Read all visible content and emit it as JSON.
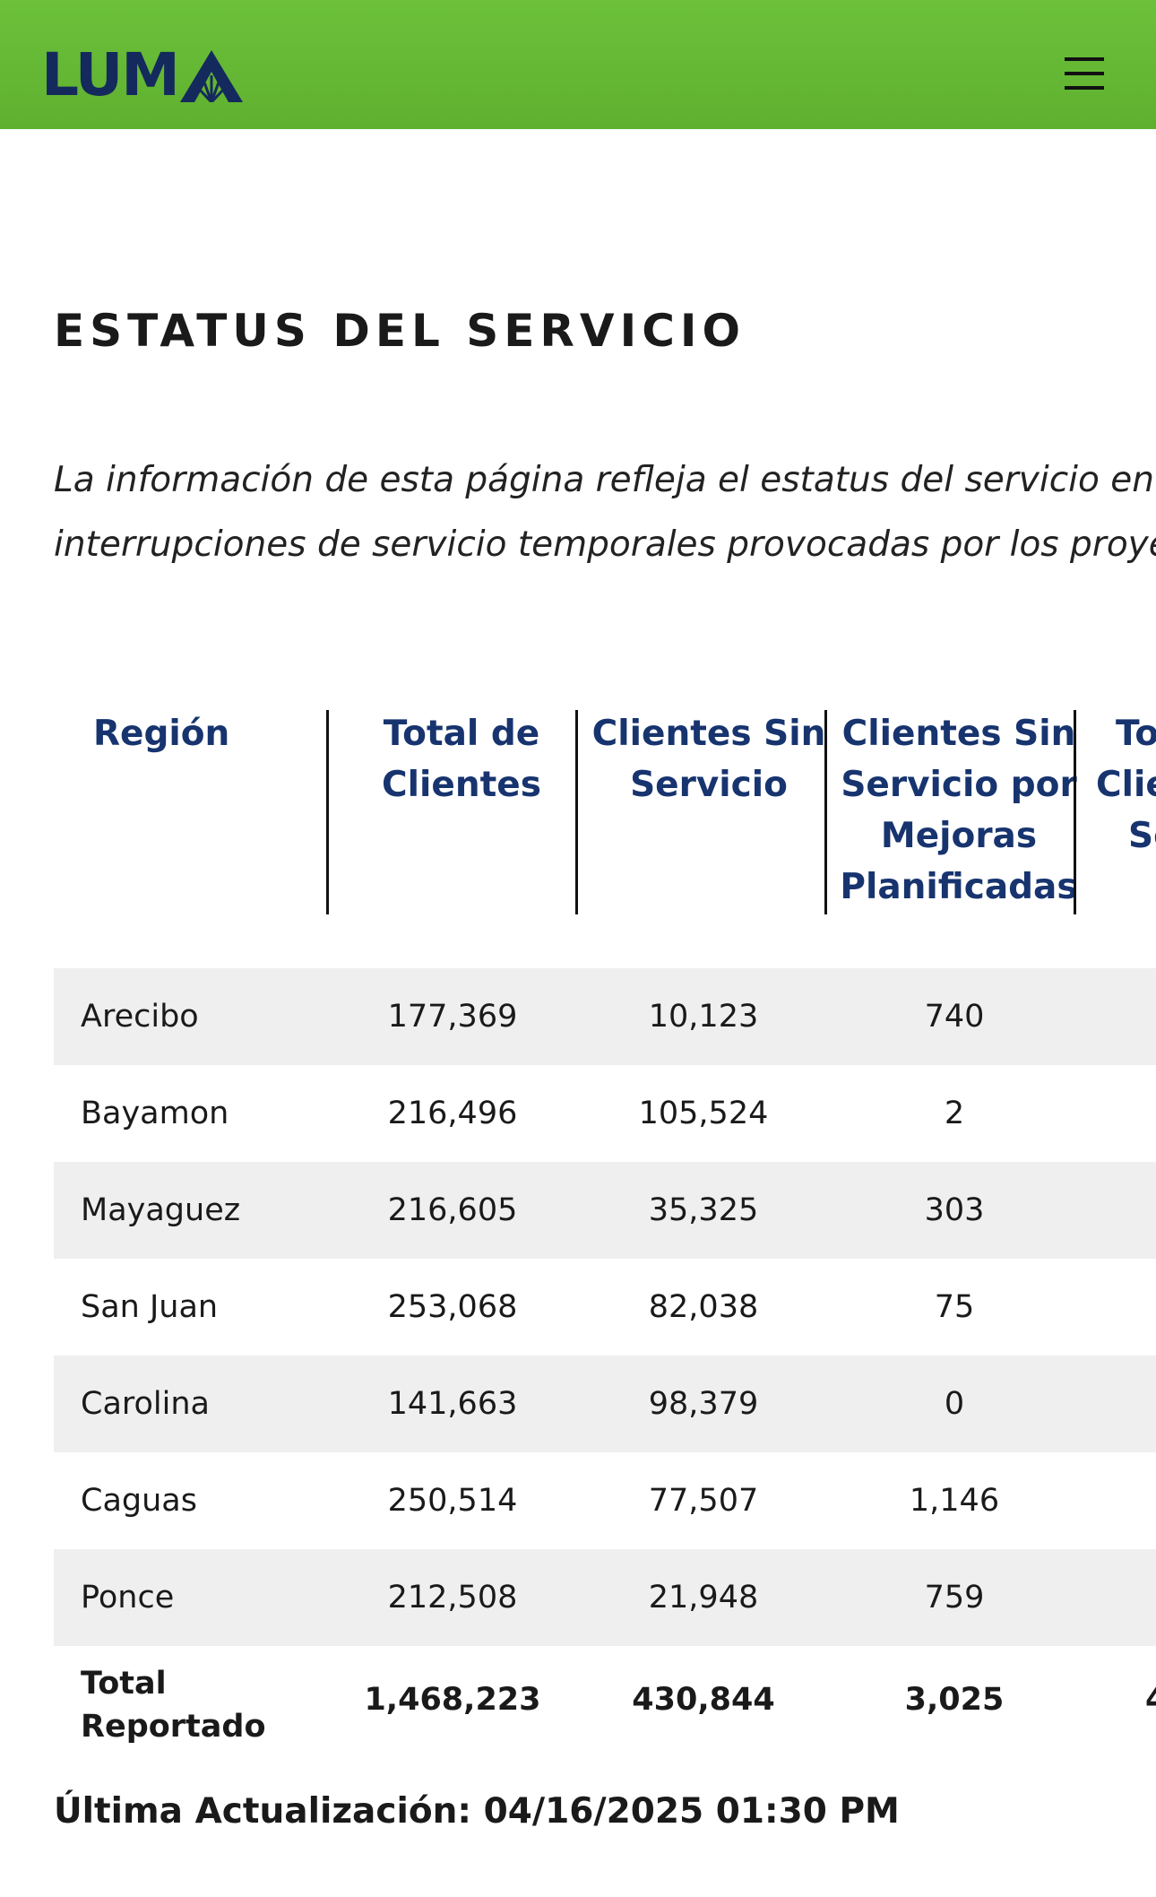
{
  "header": {
    "logo_text": "LUM",
    "logo_alt": "LUMA",
    "menu_icon": "hamburger-menu-icon",
    "brand_green": "#6cc13a",
    "brand_navy": "#142a5c"
  },
  "page": {
    "title": "ESTATUS DEL SERVICIO",
    "intro_lines": [
      "La información de esta página refleja el estatus del servicio en tiempo",
      "interrupciones de servicio temporales provocadas por los proyectos d"
    ]
  },
  "table": {
    "headers": [
      [
        "Región"
      ],
      [
        "Total de",
        "Clientes"
      ],
      [
        "Clientes Sin",
        "Servicio"
      ],
      [
        "Clientes Sin",
        "Servicio por",
        "Mejoras",
        "Planificadas"
      ],
      [
        "To",
        "Clie",
        "Se"
      ]
    ],
    "rows": [
      {
        "region": "Arecibo",
        "total": "177,369",
        "sin_servicio": "10,123",
        "mejoras": "740"
      },
      {
        "region": "Bayamon",
        "total": "216,496",
        "sin_servicio": "105,524",
        "mejoras": "2"
      },
      {
        "region": "Mayaguez",
        "total": "216,605",
        "sin_servicio": "35,325",
        "mejoras": "303"
      },
      {
        "region": "San Juan",
        "total": "253,068",
        "sin_servicio": "82,038",
        "mejoras": "75"
      },
      {
        "region": "Carolina",
        "total": "141,663",
        "sin_servicio": "98,379",
        "mejoras": "0"
      },
      {
        "region": "Caguas",
        "total": "250,514",
        "sin_servicio": "77,507",
        "mejoras": "1,146"
      },
      {
        "region": "Ponce",
        "total": "212,508",
        "sin_servicio": "21,948",
        "mejoras": "759"
      }
    ],
    "total_row": {
      "label_lines": [
        "Total",
        "Reportado"
      ],
      "total": "1,468,223",
      "sin_servicio": "430,844",
      "mejoras": "3,025",
      "fifth_partial": "4"
    }
  },
  "footer": {
    "last_updated": "Última Actualización: 04/16/2025 01:30 PM"
  }
}
